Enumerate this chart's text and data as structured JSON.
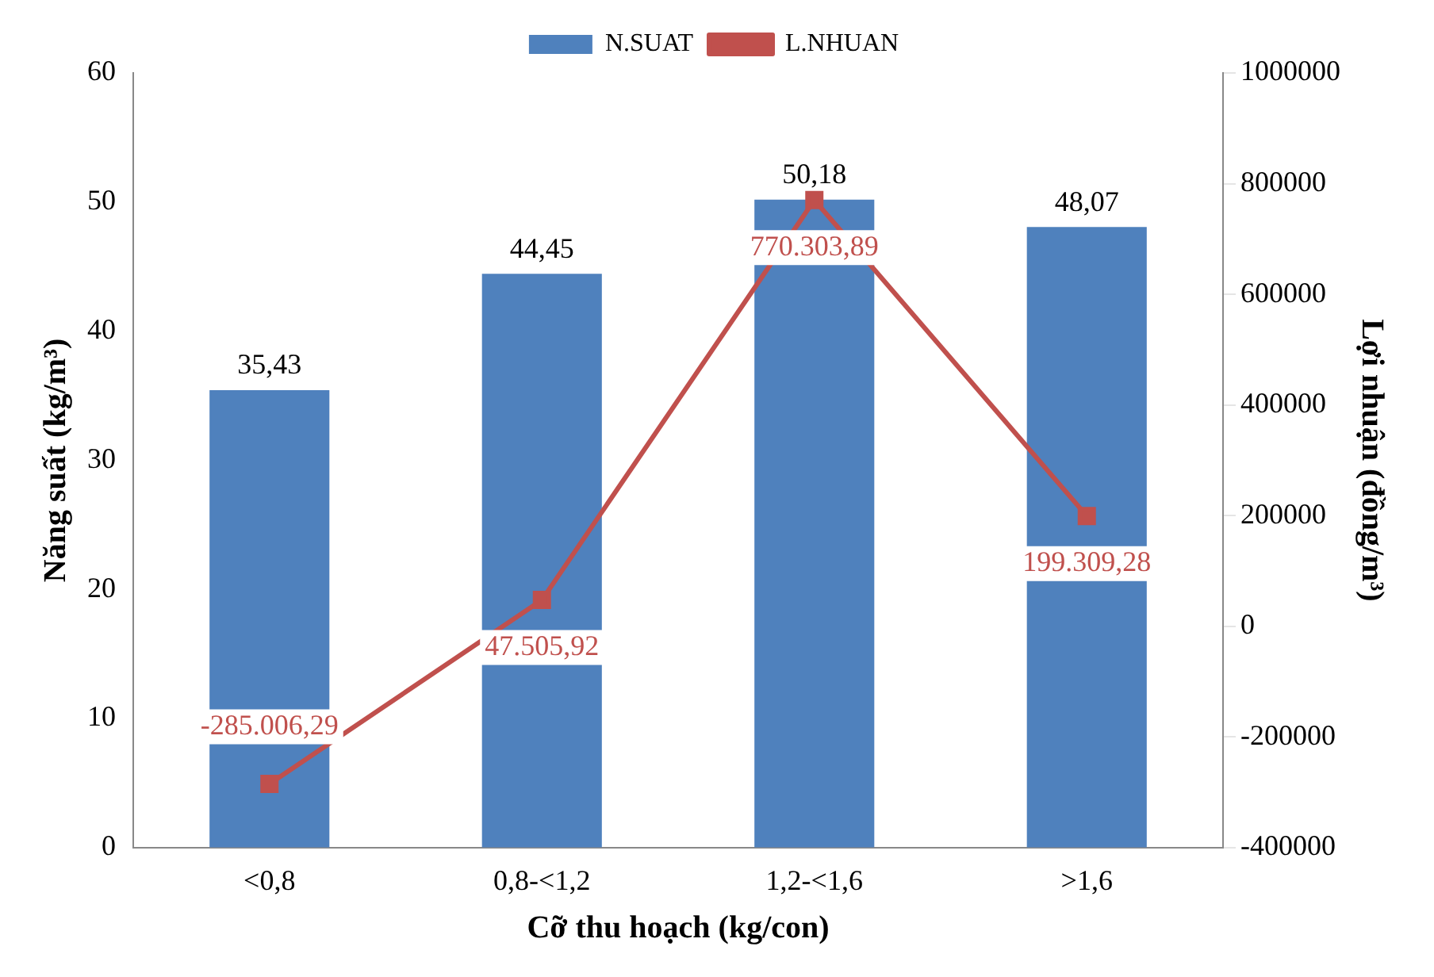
{
  "chart_data": {
    "type": "bar",
    "categories": [
      "<0,8",
      "0,8-<1,2",
      "1,2-<1,6",
      ">1,6"
    ],
    "xlabel": "Cỡ thu hoạch (kg/con)",
    "ylabel": "Năng suất (kg/m³)",
    "y2label": "Lợi nhuận (đồng/m³)",
    "series": [
      {
        "name": "N.SUAT",
        "color": "#4f81bd",
        "values": [
          35.43,
          44.45,
          50.18,
          48.07
        ],
        "value_labels": [
          "35,43",
          "44,45",
          "50,18",
          "48,07"
        ]
      },
      {
        "name": "L.NHUAN",
        "type": "line",
        "axis": "y2",
        "color": "#c0504d",
        "marker": "square",
        "values": [
          -285006.29,
          47505.92,
          770303.89,
          199309.28
        ],
        "value_labels": [
          "-285.006,29",
          "47.505,92",
          "770.303,89",
          "199.309,28"
        ]
      }
    ],
    "ylim": [
      0,
      60
    ],
    "yticks": [
      0,
      10,
      20,
      30,
      40,
      50,
      60
    ],
    "y2lim": [
      -400000,
      1000000
    ],
    "y2ticks": [
      -400000,
      -200000,
      0,
      200000,
      400000,
      600000,
      800000,
      1000000
    ],
    "grid": false,
    "legend": "top"
  }
}
